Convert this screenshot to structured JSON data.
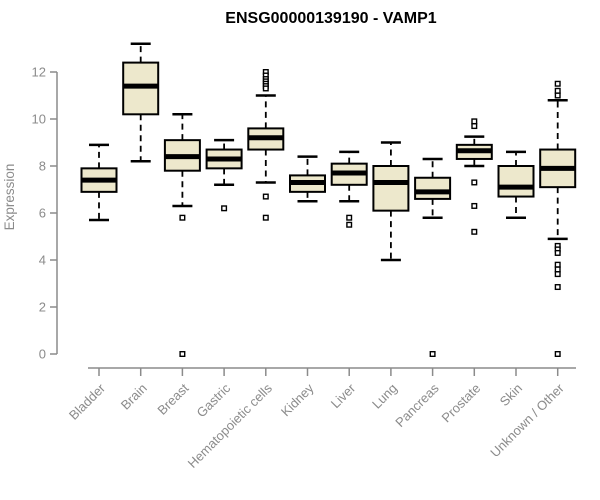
{
  "chart_data": {
    "type": "boxplot",
    "title": "ENSG00000139190 - VAMP1",
    "xlabel": "",
    "ylabel": "Expression",
    "y_ticks": [
      0,
      2,
      4,
      6,
      8,
      10,
      12
    ],
    "ylim": [
      0,
      13.5
    ],
    "grid": false,
    "legend": "none",
    "categories": [
      "Bladder",
      "Brain",
      "Breast",
      "Gastric",
      "Hematopoietic cells",
      "Kidney",
      "Liver",
      "Lung",
      "Pancreas",
      "Prostate",
      "Skin",
      "Unknown / Other"
    ],
    "series": [
      {
        "name": "Bladder",
        "whisker_low": 5.7,
        "q1": 6.9,
        "median": 7.4,
        "q3": 7.9,
        "whisker_high": 8.9,
        "outliers": []
      },
      {
        "name": "Brain",
        "whisker_low": 8.2,
        "q1": 10.2,
        "median": 11.4,
        "q3": 12.4,
        "whisker_high": 13.2,
        "outliers": []
      },
      {
        "name": "Breast",
        "whisker_low": 6.3,
        "q1": 7.8,
        "median": 8.4,
        "q3": 9.1,
        "whisker_high": 10.2,
        "outliers": [
          5.8,
          0
        ]
      },
      {
        "name": "Gastric",
        "whisker_low": 7.2,
        "q1": 7.9,
        "median": 8.3,
        "q3": 8.7,
        "whisker_high": 9.1,
        "outliers": [
          6.2
        ]
      },
      {
        "name": "Hematopoietic cells",
        "whisker_low": 7.3,
        "q1": 8.7,
        "median": 9.2,
        "q3": 9.6,
        "whisker_high": 11.0,
        "outliers": [
          12.0,
          11.85,
          11.7,
          11.6,
          11.5,
          11.4,
          11.3,
          6.7,
          5.8
        ]
      },
      {
        "name": "Kidney",
        "whisker_low": 6.5,
        "q1": 6.9,
        "median": 7.3,
        "q3": 7.6,
        "whisker_high": 8.4,
        "outliers": []
      },
      {
        "name": "Liver",
        "whisker_low": 6.5,
        "q1": 7.2,
        "median": 7.7,
        "q3": 8.1,
        "whisker_high": 8.6,
        "outliers": [
          5.8,
          5.5
        ]
      },
      {
        "name": "Lung",
        "whisker_low": 4.0,
        "q1": 6.1,
        "median": 7.3,
        "q3": 8.0,
        "whisker_high": 9.0,
        "outliers": []
      },
      {
        "name": "Pancreas",
        "whisker_low": 5.8,
        "q1": 6.6,
        "median": 6.9,
        "q3": 7.5,
        "whisker_high": 8.3,
        "outliers": [
          0
        ]
      },
      {
        "name": "Prostate",
        "whisker_low": 8.0,
        "q1": 8.3,
        "median": 8.65,
        "q3": 8.9,
        "whisker_high": 9.25,
        "outliers": [
          9.9,
          9.7,
          7.3,
          6.3,
          5.2
        ]
      },
      {
        "name": "Skin",
        "whisker_low": 5.8,
        "q1": 6.7,
        "median": 7.1,
        "q3": 8.0,
        "whisker_high": 8.6,
        "outliers": []
      },
      {
        "name": "Unknown / Other",
        "whisker_low": 4.9,
        "q1": 7.1,
        "median": 7.9,
        "q3": 8.7,
        "whisker_high": 10.8,
        "outliers": [
          11.5,
          11.2,
          11.0,
          4.6,
          4.45,
          4.3,
          3.8,
          3.6,
          3.4,
          2.85,
          0
        ]
      }
    ]
  },
  "colors": {
    "background": "#FFFFFF",
    "box_fill": "#EDE8CC",
    "box_border": "#000000",
    "median_line": "#000000",
    "whisker": "#000000",
    "outlier_stroke": "#000000",
    "outlier_fill": "#FFFFFF",
    "axis": "#8B8B8B",
    "tick_text": "#8B8B8B",
    "title_text": "#000000"
  }
}
